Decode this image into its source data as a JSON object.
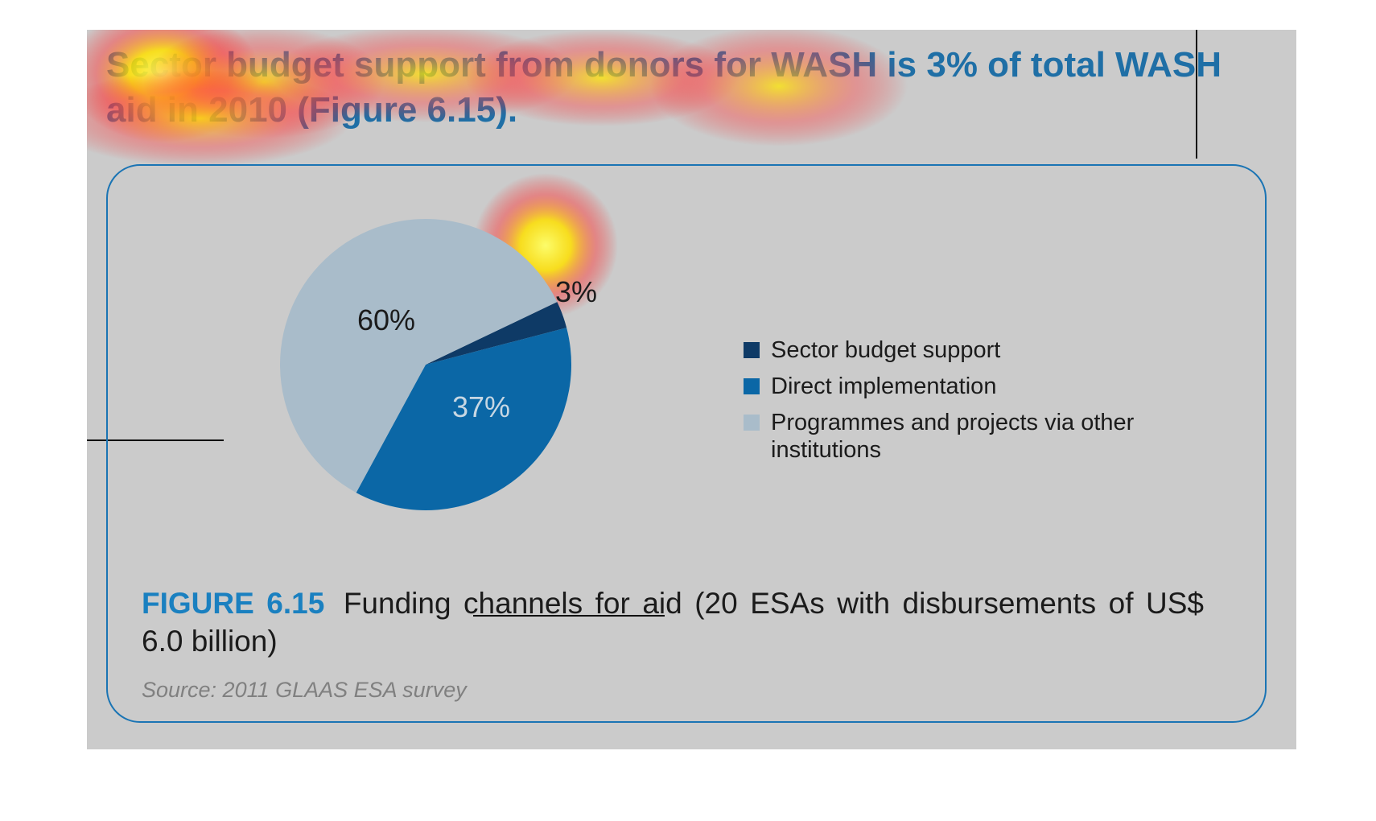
{
  "heading": "Sector budget support from donors for WASH is 3% of total WASH aid in 2010 (Figure 6.15).",
  "chart_data": {
    "type": "pie",
    "title": "",
    "slices": [
      {
        "name": "Sector budget support",
        "value": 3,
        "label": "3%",
        "color": "#0e3a66"
      },
      {
        "name": "Direct implementation",
        "value": 37,
        "label": "37%",
        "color": "#0b67a6"
      },
      {
        "name": "Programmes and projects via other institutions",
        "value": 60,
        "label": "60%",
        "color": "#a9bcca"
      }
    ],
    "legend_position": "right"
  },
  "legend": {
    "items": [
      {
        "label": "Sector budget support",
        "color": "#0e3a66"
      },
      {
        "label": "Direct implementation",
        "color": "#0b67a6"
      },
      {
        "label": "Programmes and projects via other institutions",
        "color": "#a9bcca"
      }
    ]
  },
  "caption": {
    "figure_number": "FIGURE 6.15",
    "text": "Funding channels for aid (20 ESAs with disbursements of US$ 6.0 billion)"
  },
  "source": "Source: 2011 GLAAS ESA survey"
}
